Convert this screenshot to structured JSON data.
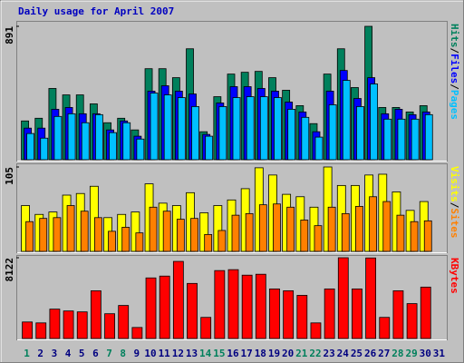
{
  "chart_data": [
    {
      "type": "bar",
      "title": "Daily usage for April 2007",
      "title_color": "#0000c0",
      "legend_separator": "/",
      "series": [
        {
          "name": "Hits",
          "color": "#00805c",
          "values": [
            259,
            277,
            476,
            433,
            433,
            373,
            247,
            277,
            199,
            608,
            608,
            548,
            741,
            187,
            421,
            572,
            584,
            590,
            548,
            464,
            361,
            241,
            572,
            741,
            482,
            891,
            349,
            349,
            319,
            361,
            null
          ]
        },
        {
          "name": "Files",
          "color": "#0000ff",
          "values": [
            211,
            211,
            337,
            349,
            307,
            307,
            199,
            259,
            157,
            458,
            494,
            458,
            439,
            169,
            379,
            488,
            488,
            476,
            458,
            385,
            319,
            187,
            458,
            596,
            409,
            548,
            307,
            337,
            301,
            319,
            null
          ]
        },
        {
          "name": "Pages",
          "color": "#00c0ff",
          "values": [
            175,
            144,
            289,
            307,
            247,
            301,
            181,
            247,
            138,
            445,
            433,
            415,
            355,
            157,
            355,
            415,
            421,
            421,
            415,
            337,
            283,
            151,
            367,
            530,
            355,
            506,
            271,
            271,
            271,
            301,
            null
          ]
        }
      ],
      "ylim": [
        0,
        891
      ],
      "yticks": [
        891
      ]
    },
    {
      "type": "bar",
      "series": [
        {
          "name": "Visits",
          "color": "#ffff00",
          "values": [
            57,
            46,
            49,
            70,
            72,
            81,
            42,
            46,
            49,
            84,
            60,
            57,
            73,
            48,
            57,
            64,
            78,
            104,
            95,
            71,
            68,
            55,
            105,
            82,
            82,
            95,
            96,
            74,
            51,
            62,
            null
          ]
        },
        {
          "name": "Sites",
          "color": "#ff8000",
          "values": [
            37,
            41,
            42,
            57,
            50,
            42,
            25,
            30,
            23,
            55,
            50,
            40,
            41,
            21,
            26,
            45,
            47,
            58,
            59,
            55,
            39,
            32,
            55,
            47,
            56,
            68,
            62,
            45,
            37,
            38,
            null
          ]
        }
      ],
      "ylim": [
        0,
        105
      ],
      "yticks": [
        105
      ]
    },
    {
      "type": "bar",
      "categories": [
        "1",
        "2",
        "3",
        "4",
        "5",
        "6",
        "7",
        "8",
        "9",
        "10",
        "11",
        "12",
        "13",
        "14",
        "15",
        "16",
        "17",
        "18",
        "19",
        "20",
        "21",
        "22",
        "23",
        "24",
        "25",
        "26",
        "27",
        "28",
        "29",
        "30",
        "31"
      ],
      "category_colors": [
        "#00805c",
        "#000080",
        "#000080",
        "#000080",
        "#000080",
        "#000080",
        "#00805c",
        "#00805c",
        "#000080",
        "#000080",
        "#000080",
        "#000080",
        "#000080",
        "#00805c",
        "#00805c",
        "#000080",
        "#000080",
        "#000080",
        "#000080",
        "#000080",
        "#00805c",
        "#00805c",
        "#000080",
        "#000080",
        "#000080",
        "#000080",
        "#000080",
        "#00805c",
        "#00805c",
        "#000080",
        "#000080"
      ],
      "series": [
        {
          "name": "KBytes",
          "color": "#ff0000",
          "values": [
            1661,
            1569,
            2954,
            2769,
            2677,
            4800,
            2492,
            3323,
            1108,
            6092,
            6276,
            7753,
            5538,
            2123,
            6830,
            6923,
            6369,
            6461,
            4984,
            4800,
            4338,
            1569,
            4984,
            8122,
            4984,
            8100,
            2123,
            4800,
            3507,
            5169,
            null
          ]
        }
      ],
      "ylim": [
        0,
        8122
      ],
      "yticks": [
        8122
      ]
    }
  ]
}
